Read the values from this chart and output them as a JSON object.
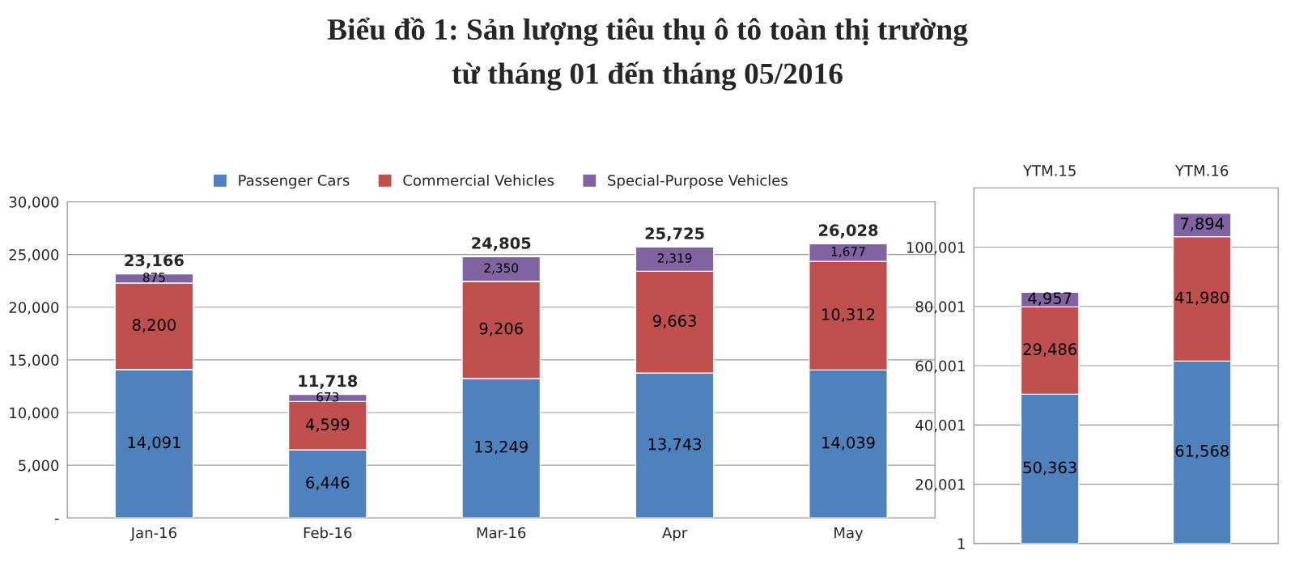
{
  "chart_data": [
    {
      "type": "bar",
      "title": "Biểu đồ 1: Sản lượng tiêu thụ ô tô toàn thị trường\ntừ tháng 01 đến tháng 05/2016",
      "stacked": true,
      "categories": [
        "Jan-16",
        "Feb-16",
        "Mar-16",
        "Apr",
        "May"
      ],
      "series": [
        {
          "name": "Passenger Cars",
          "color": "#4f81bd",
          "values": [
            14091,
            6446,
            13249,
            13743,
            14039
          ],
          "value_labels": [
            "14,091",
            "6,446",
            "13,249",
            "13,743",
            "14,039"
          ]
        },
        {
          "name": "Commercial Vehicles",
          "color": "#c0504d",
          "values": [
            8200,
            4599,
            9206,
            9663,
            10312
          ],
          "value_labels": [
            "8,200",
            "4,599",
            "9,206",
            "9,663",
            "10,312"
          ]
        },
        {
          "name": "Special-Purpose Vehicles",
          "color": "#8064a2",
          "values": [
            875,
            673,
            2350,
            2319,
            1677
          ],
          "value_labels": [
            "875",
            "673",
            "2,350",
            "2,319",
            "1,677"
          ]
        }
      ],
      "totals": [
        "23,166",
        "11,718",
        "24,805",
        "25,725",
        "26,028"
      ],
      "ylim": [
        0,
        30000
      ],
      "yticks": [
        {
          "value": 0,
          "label": "-"
        },
        {
          "value": 5000,
          "label": "5,000"
        },
        {
          "value": 10000,
          "label": "10,000"
        },
        {
          "value": 15000,
          "label": "15,000"
        },
        {
          "value": 20000,
          "label": "20,000"
        },
        {
          "value": 25000,
          "label": "25,000"
        },
        {
          "value": 30000,
          "label": "30,000"
        }
      ],
      "grid": "y",
      "legend": "top"
    },
    {
      "type": "bar",
      "stacked": true,
      "categories": [
        "YTM.15",
        "YTM.16"
      ],
      "series": [
        {
          "color": "#4f81bd",
          "values": [
            50363,
            61568
          ],
          "value_labels": [
            "50,363",
            "61,568"
          ]
        },
        {
          "color": "#c0504d",
          "values": [
            29486,
            41980
          ],
          "value_labels": [
            "29,486",
            "41,980"
          ]
        },
        {
          "color": "#8064a2",
          "values": [
            4957,
            7894
          ],
          "value_labels": [
            "4,957",
            "7,894"
          ]
        }
      ],
      "ylim": [
        1,
        120001
      ],
      "yticks": [
        1,
        {
          "value": 20001,
          "label": "20,001"
        },
        {
          "value": 40001,
          "label": "40,001"
        },
        {
          "value": 60001,
          "label": "60,001"
        },
        {
          "value": 80001,
          "label": "80,001"
        },
        {
          "value": 100001,
          "label": "100,001"
        }
      ],
      "grid": "y",
      "legend": false
    }
  ]
}
